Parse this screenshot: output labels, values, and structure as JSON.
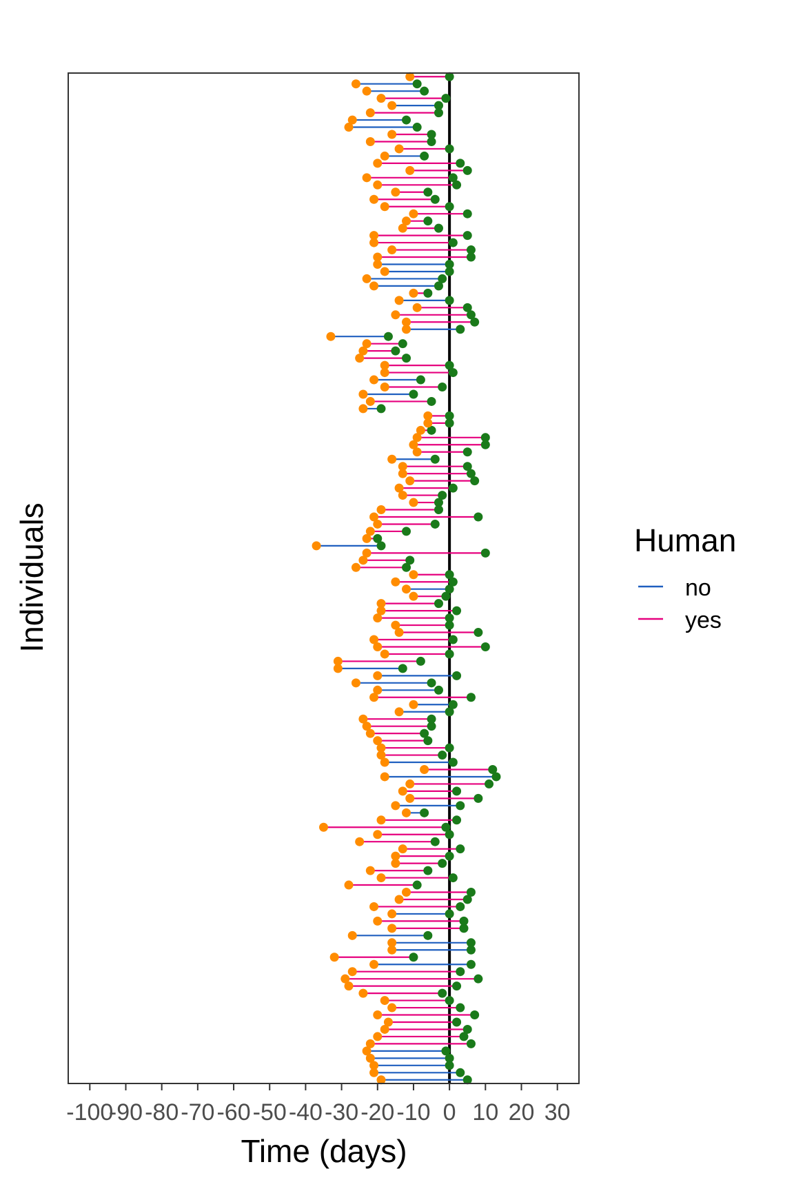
{
  "chart_data": {
    "type": "dumbbell",
    "xlabel": "Time (days)",
    "ylabel": "Individuals",
    "xlim": [
      -106,
      36
    ],
    "ylim": [
      0.5,
      140.5
    ],
    "x_ticks": [
      -100,
      -90,
      -80,
      -70,
      -60,
      -50,
      -40,
      -30,
      -20,
      -10,
      0,
      10,
      20,
      30
    ],
    "x_tick_labels": [
      "-100",
      "-90",
      "-80",
      "-70",
      "-60",
      "-50",
      "-40",
      "-30",
      "-20",
      "-10",
      "0",
      "10",
      "20",
      "30"
    ],
    "reference_line_x": 0,
    "grid": false,
    "legend": {
      "title": "Human",
      "position": "right",
      "entries": [
        {
          "label": "no",
          "color": "#1f5fbf"
        },
        {
          "label": "yes",
          "color": "#e6007e"
        }
      ]
    },
    "start_point_color": "#ff8c00",
    "end_point_color": "#1a7a1a",
    "segments": [
      [
        -19,
        5,
        0
      ],
      [
        -21,
        3,
        0
      ],
      [
        -21,
        0,
        0
      ],
      [
        -22,
        0,
        0
      ],
      [
        -23,
        -1,
        0
      ],
      [
        -22,
        6,
        1
      ],
      [
        -20,
        4,
        1
      ],
      [
        -18,
        5,
        1
      ],
      [
        -17,
        2,
        1
      ],
      [
        -20,
        7,
        1
      ],
      [
        -16,
        3,
        1
      ],
      [
        -18,
        0,
        1
      ],
      [
        -24,
        -2,
        1
      ],
      [
        -28,
        2,
        1
      ],
      [
        -29,
        8,
        1
      ],
      [
        -27,
        3,
        1
      ],
      [
        -21,
        6,
        0
      ],
      [
        -32,
        -10,
        1
      ],
      [
        -16,
        6,
        0
      ],
      [
        -16,
        6,
        0
      ],
      [
        -27,
        -6,
        0
      ],
      [
        -16,
        4,
        1
      ],
      [
        -20,
        4,
        1
      ],
      [
        -16,
        0,
        0
      ],
      [
        -21,
        3,
        1
      ],
      [
        -14,
        5,
        1
      ],
      [
        -12,
        6,
        1
      ],
      [
        -28,
        -9,
        1
      ],
      [
        -19,
        1,
        1
      ],
      [
        -22,
        -6,
        1
      ],
      [
        -15,
        -2,
        1
      ],
      [
        -15,
        0,
        1
      ],
      [
        -13,
        3,
        1
      ],
      [
        -25,
        -4,
        1
      ],
      [
        -20,
        0,
        1
      ],
      [
        -35,
        -1,
        1
      ],
      [
        -19,
        2,
        1
      ],
      [
        -12,
        -7,
        0
      ],
      [
        -15,
        3,
        0
      ],
      [
        -11,
        8,
        1
      ],
      [
        -13,
        2,
        1
      ],
      [
        -11,
        11,
        1
      ],
      [
        -18,
        13,
        0
      ],
      [
        -7,
        12,
        1
      ],
      [
        -18,
        1,
        0
      ],
      [
        -19,
        -2,
        1
      ],
      [
        -19,
        0,
        1
      ],
      [
        -20,
        -6,
        1
      ],
      [
        -22,
        -7,
        1
      ],
      [
        -23,
        -5,
        1
      ],
      [
        -24,
        -5,
        1
      ],
      [
        -14,
        0,
        0
      ],
      [
        -10,
        1,
        0
      ],
      [
        -21,
        6,
        1
      ],
      [
        -20,
        -3,
        0
      ],
      [
        -26,
        -5,
        0
      ],
      [
        -20,
        2,
        0
      ],
      [
        -31,
        -13,
        0
      ],
      [
        -31,
        -8,
        1
      ],
      [
        -18,
        0,
        1
      ],
      [
        -20,
        10,
        1
      ],
      [
        -21,
        1,
        1
      ],
      [
        -14,
        8,
        1
      ],
      [
        -15,
        0,
        1
      ],
      [
        -20,
        0,
        1
      ],
      [
        -19,
        2,
        1
      ],
      [
        -19,
        -3,
        1
      ],
      [
        -10,
        -1,
        1
      ],
      [
        -12,
        0,
        0
      ],
      [
        -15,
        1,
        1
      ],
      [
        -10,
        0,
        1
      ],
      [
        -26,
        -12,
        1
      ],
      [
        -24,
        -11,
        1
      ],
      [
        -23,
        10,
        1
      ],
      [
        -37,
        -19,
        0
      ],
      [
        -23,
        -20,
        1
      ],
      [
        -22,
        -12,
        1
      ],
      [
        -20,
        -4,
        1
      ],
      [
        -21,
        8,
        1
      ],
      [
        -19,
        -3,
        1
      ],
      [
        -10,
        -3,
        1
      ],
      [
        -13,
        -2,
        1
      ],
      [
        -14,
        1,
        1
      ],
      [
        -11,
        7,
        1
      ],
      [
        -13,
        6,
        1
      ],
      [
        -13,
        5,
        1
      ],
      [
        -16,
        -4,
        0
      ],
      [
        -9,
        5,
        1
      ],
      [
        -10,
        10,
        1
      ],
      [
        -9,
        10,
        1
      ],
      [
        -8,
        -5,
        1
      ],
      [
        -6,
        0,
        1
      ],
      [
        -6,
        0,
        1
      ],
      [
        -24,
        -19,
        0
      ],
      [
        -22,
        -5,
        1
      ],
      [
        -24,
        -10,
        0
      ],
      [
        -18,
        -2,
        1
      ],
      [
        -21,
        -8,
        0
      ],
      [
        -18,
        1,
        1
      ],
      [
        -18,
        0,
        1
      ],
      [
        -25,
        -12,
        1
      ],
      [
        -24,
        -15,
        1
      ],
      [
        -23,
        -13,
        1
      ],
      [
        -33,
        -17,
        0
      ],
      [
        -12,
        3,
        0
      ],
      [
        -12,
        7,
        1
      ],
      [
        -15,
        6,
        1
      ],
      [
        -9,
        5,
        1
      ],
      [
        -14,
        0,
        0
      ],
      [
        -10,
        -6,
        1
      ],
      [
        -21,
        -3,
        0
      ],
      [
        -23,
        -2,
        0
      ],
      [
        -18,
        0,
        0
      ],
      [
        -20,
        0,
        0
      ],
      [
        -20,
        6,
        1
      ],
      [
        -16,
        6,
        1
      ],
      [
        -21,
        1,
        1
      ],
      [
        -21,
        5,
        1
      ],
      [
        -13,
        -3,
        1
      ],
      [
        -12,
        -6,
        1
      ],
      [
        -10,
        5,
        1
      ],
      [
        -18,
        0,
        1
      ],
      [
        -21,
        -4,
        1
      ],
      [
        -15,
        -6,
        1
      ],
      [
        -20,
        2,
        1
      ],
      [
        -23,
        1,
        1
      ],
      [
        -11,
        5,
        1
      ],
      [
        -20,
        3,
        1
      ],
      [
        -18,
        -7,
        0
      ],
      [
        -14,
        0,
        1
      ],
      [
        -22,
        -5,
        1
      ],
      [
        -16,
        -5,
        1
      ],
      [
        -28,
        -9,
        0
      ],
      [
        -27,
        -12,
        0
      ],
      [
        -22,
        -3,
        1
      ],
      [
        -16,
        -3,
        0
      ],
      [
        -19,
        -1,
        1
      ],
      [
        -23,
        -7,
        0
      ],
      [
        -26,
        -9,
        0
      ],
      [
        -11,
        0,
        1
      ]
    ]
  }
}
